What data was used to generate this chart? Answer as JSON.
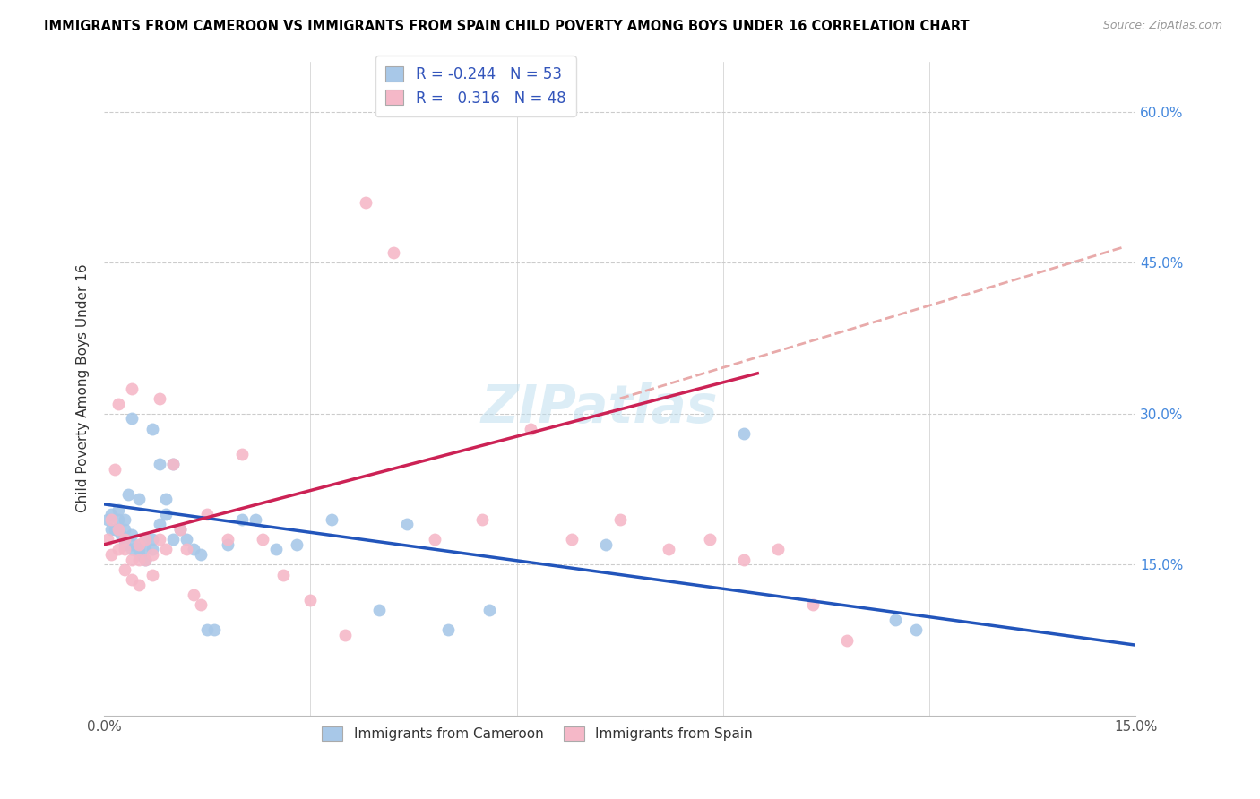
{
  "title": "IMMIGRANTS FROM CAMEROON VS IMMIGRANTS FROM SPAIN CHILD POVERTY AMONG BOYS UNDER 16 CORRELATION CHART",
  "source": "Source: ZipAtlas.com",
  "ylabel": "Child Poverty Among Boys Under 16",
  "xlim": [
    0.0,
    0.15
  ],
  "ylim": [
    0.0,
    0.65
  ],
  "yticks_right": [
    0.15,
    0.3,
    0.45,
    0.6
  ],
  "ytick_labels_right": [
    "15.0%",
    "30.0%",
    "45.0%",
    "60.0%"
  ],
  "xtick_positions": [
    0.0,
    0.15
  ],
  "xtick_labels": [
    "0.0%",
    "15.0%"
  ],
  "watermark": "ZIPatlas",
  "legend_R_blue": "-0.244",
  "legend_N_blue": "53",
  "legend_R_pink": "0.316",
  "legend_N_pink": "48",
  "blue_color": "#A8C8E8",
  "pink_color": "#F5B8C8",
  "line_blue_color": "#2255BB",
  "line_pink_color": "#CC2255",
  "line_pink_dashed_color": "#E8AAAA",
  "blue_scatter_x": [
    0.0005,
    0.001,
    0.001,
    0.0015,
    0.002,
    0.002,
    0.002,
    0.0025,
    0.003,
    0.003,
    0.003,
    0.003,
    0.0035,
    0.004,
    0.004,
    0.004,
    0.004,
    0.005,
    0.005,
    0.005,
    0.005,
    0.006,
    0.006,
    0.006,
    0.007,
    0.007,
    0.007,
    0.008,
    0.008,
    0.009,
    0.009,
    0.01,
    0.01,
    0.011,
    0.012,
    0.013,
    0.014,
    0.015,
    0.016,
    0.018,
    0.02,
    0.022,
    0.025,
    0.028,
    0.033,
    0.04,
    0.044,
    0.05,
    0.056,
    0.073,
    0.093,
    0.115,
    0.118
  ],
  "blue_scatter_y": [
    0.195,
    0.185,
    0.2,
    0.185,
    0.185,
    0.195,
    0.205,
    0.18,
    0.17,
    0.175,
    0.185,
    0.195,
    0.22,
    0.165,
    0.17,
    0.18,
    0.295,
    0.16,
    0.165,
    0.17,
    0.215,
    0.155,
    0.165,
    0.175,
    0.165,
    0.175,
    0.285,
    0.19,
    0.25,
    0.2,
    0.215,
    0.175,
    0.25,
    0.185,
    0.175,
    0.165,
    0.16,
    0.085,
    0.085,
    0.17,
    0.195,
    0.195,
    0.165,
    0.17,
    0.195,
    0.105,
    0.19,
    0.085,
    0.105,
    0.17,
    0.28,
    0.095,
    0.085
  ],
  "pink_scatter_x": [
    0.0005,
    0.001,
    0.001,
    0.0015,
    0.002,
    0.002,
    0.002,
    0.003,
    0.003,
    0.003,
    0.004,
    0.004,
    0.004,
    0.005,
    0.005,
    0.005,
    0.006,
    0.006,
    0.007,
    0.007,
    0.008,
    0.008,
    0.009,
    0.01,
    0.011,
    0.012,
    0.013,
    0.014,
    0.015,
    0.018,
    0.02,
    0.023,
    0.026,
    0.03,
    0.035,
    0.038,
    0.042,
    0.048,
    0.055,
    0.062,
    0.068,
    0.075,
    0.082,
    0.088,
    0.093,
    0.098,
    0.103,
    0.108
  ],
  "pink_scatter_y": [
    0.175,
    0.16,
    0.195,
    0.245,
    0.165,
    0.185,
    0.31,
    0.145,
    0.165,
    0.175,
    0.135,
    0.155,
    0.325,
    0.13,
    0.155,
    0.17,
    0.155,
    0.175,
    0.14,
    0.16,
    0.175,
    0.315,
    0.165,
    0.25,
    0.185,
    0.165,
    0.12,
    0.11,
    0.2,
    0.175,
    0.26,
    0.175,
    0.14,
    0.115,
    0.08,
    0.51,
    0.46,
    0.175,
    0.195,
    0.285,
    0.175,
    0.195,
    0.165,
    0.175,
    0.155,
    0.165,
    0.11,
    0.075
  ],
  "blue_line_x": [
    0.0,
    0.15
  ],
  "blue_line_y": [
    0.21,
    0.07
  ],
  "pink_solid_line_x": [
    0.0,
    0.095
  ],
  "pink_solid_line_y": [
    0.17,
    0.34
  ],
  "pink_dashed_line_x": [
    0.075,
    0.148
  ],
  "pink_dashed_line_y": [
    0.315,
    0.465
  ]
}
